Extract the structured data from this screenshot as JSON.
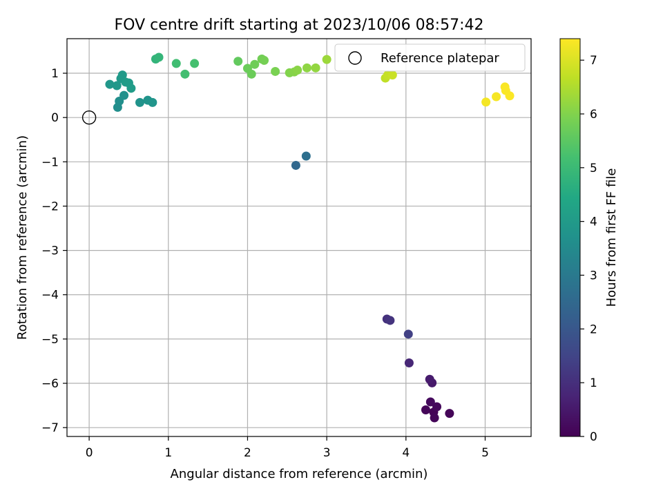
{
  "chart_data": {
    "type": "scatter",
    "title": "FOV centre drift starting at 2023/10/06 08:57:42",
    "xlabel": "Angular distance from reference (arcmin)",
    "ylabel": "Rotation from reference (arcmin)",
    "xlim": [
      -0.28,
      5.58
    ],
    "ylim": [
      -7.2,
      1.78
    ],
    "xticks": [
      0,
      1,
      2,
      3,
      4,
      5
    ],
    "xtick_labels": [
      "0",
      "1",
      "2",
      "3",
      "4",
      "5"
    ],
    "yticks": [
      1,
      0,
      -1,
      -2,
      -3,
      -4,
      -5,
      -6,
      -7
    ],
    "ytick_labels": [
      "1",
      "0",
      "−1",
      "−2",
      "−3",
      "−4",
      "−5",
      "−6",
      "−7"
    ],
    "grid": true,
    "legend": {
      "position": "top-right",
      "entries": [
        "Reference platepar"
      ]
    },
    "reference_point": {
      "x": 0,
      "y": 0,
      "label": "Reference platepar"
    },
    "colorbar": {
      "label": "Hours from first FF file",
      "min": 0,
      "max": 7.4,
      "ticks": [
        0,
        1,
        2,
        3,
        4,
        5,
        6,
        7
      ],
      "tick_labels": [
        "0",
        "1",
        "2",
        "3",
        "4",
        "5",
        "6",
        "7"
      ],
      "colormap": "viridis"
    },
    "points": [
      {
        "x": 4.35,
        "y": -6.65,
        "c": 0.05
      },
      {
        "x": 4.36,
        "y": -6.78,
        "c": 0.08
      },
      {
        "x": 4.55,
        "y": -6.68,
        "c": 0.1
      },
      {
        "x": 4.25,
        "y": -6.6,
        "c": 0.12
      },
      {
        "x": 4.39,
        "y": -6.53,
        "c": 0.15
      },
      {
        "x": 4.31,
        "y": -6.42,
        "c": 0.2
      },
      {
        "x": 4.33,
        "y": -5.99,
        "c": 0.5
      },
      {
        "x": 4.3,
        "y": -5.91,
        "c": 0.55
      },
      {
        "x": 4.04,
        "y": -5.54,
        "c": 0.8
      },
      {
        "x": 3.76,
        "y": -4.55,
        "c": 1.05
      },
      {
        "x": 3.8,
        "y": -4.58,
        "c": 1.1
      },
      {
        "x": 4.03,
        "y": -4.89,
        "c": 1.4
      },
      {
        "x": 2.61,
        "y": -1.08,
        "c": 2.5
      },
      {
        "x": 2.74,
        "y": -0.87,
        "c": 2.7
      },
      {
        "x": 0.36,
        "y": 0.23,
        "c": 3.6
      },
      {
        "x": 0.38,
        "y": 0.37,
        "c": 3.65
      },
      {
        "x": 0.44,
        "y": 0.5,
        "c": 3.7
      },
      {
        "x": 0.64,
        "y": 0.34,
        "c": 3.75
      },
      {
        "x": 0.74,
        "y": 0.39,
        "c": 3.8
      },
      {
        "x": 0.8,
        "y": 0.34,
        "c": 3.82
      },
      {
        "x": 0.26,
        "y": 0.75,
        "c": 3.9
      },
      {
        "x": 0.35,
        "y": 0.72,
        "c": 3.92
      },
      {
        "x": 0.4,
        "y": 0.88,
        "c": 3.95
      },
      {
        "x": 0.42,
        "y": 0.96,
        "c": 4.0
      },
      {
        "x": 0.5,
        "y": 0.78,
        "c": 4.02
      },
      {
        "x": 0.53,
        "y": 0.66,
        "c": 4.05
      },
      {
        "x": 0.46,
        "y": 0.8,
        "c": 4.05
      },
      {
        "x": 0.84,
        "y": 1.32,
        "c": 4.8
      },
      {
        "x": 0.88,
        "y": 1.36,
        "c": 4.85
      },
      {
        "x": 1.1,
        "y": 1.22,
        "c": 5.1
      },
      {
        "x": 1.21,
        "y": 0.98,
        "c": 5.15
      },
      {
        "x": 1.33,
        "y": 1.22,
        "c": 5.2
      },
      {
        "x": 1.88,
        "y": 1.27,
        "c": 5.6
      },
      {
        "x": 2.0,
        "y": 1.11,
        "c": 5.7
      },
      {
        "x": 2.05,
        "y": 0.98,
        "c": 5.72
      },
      {
        "x": 2.09,
        "y": 1.2,
        "c": 5.75
      },
      {
        "x": 2.18,
        "y": 1.32,
        "c": 5.8
      },
      {
        "x": 2.21,
        "y": 1.29,
        "c": 5.85
      },
      {
        "x": 2.35,
        "y": 1.04,
        "c": 5.9
      },
      {
        "x": 2.53,
        "y": 1.01,
        "c": 6.0
      },
      {
        "x": 2.59,
        "y": 1.03,
        "c": 6.05
      },
      {
        "x": 2.63,
        "y": 1.07,
        "c": 6.1
      },
      {
        "x": 2.75,
        "y": 1.12,
        "c": 6.15
      },
      {
        "x": 2.86,
        "y": 1.12,
        "c": 6.2
      },
      {
        "x": 3.0,
        "y": 1.31,
        "c": 6.3
      },
      {
        "x": 3.74,
        "y": 0.89,
        "c": 6.7
      },
      {
        "x": 3.77,
        "y": 0.96,
        "c": 6.75
      },
      {
        "x": 3.83,
        "y": 0.96,
        "c": 6.8
      },
      {
        "x": 5.01,
        "y": 0.35,
        "c": 7.3
      },
      {
        "x": 5.14,
        "y": 0.47,
        "c": 7.32
      },
      {
        "x": 5.25,
        "y": 0.69,
        "c": 7.35
      },
      {
        "x": 5.26,
        "y": 0.61,
        "c": 7.36
      },
      {
        "x": 5.31,
        "y": 0.49,
        "c": 7.38
      }
    ]
  }
}
